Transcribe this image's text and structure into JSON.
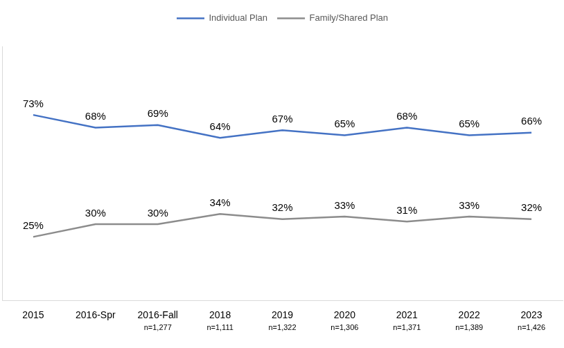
{
  "chart_data": {
    "type": "line",
    "categories": [
      "2015",
      "2016-Spr",
      "2016-Fall",
      "2018",
      "2019",
      "2020",
      "2021",
      "2022",
      "2023"
    ],
    "category_notes": [
      null,
      null,
      "n=1,277",
      "n=1,111",
      "n=1,322",
      "n=1,306",
      "n=1,371",
      "n=1,389",
      "n=1,426"
    ],
    "series": [
      {
        "name": "Individual Plan",
        "color": "#4472C4",
        "values": [
          73,
          68,
          69,
          64,
          67,
          65,
          68,
          65,
          66
        ],
        "value_labels": [
          "73%",
          "68%",
          "69%",
          "64%",
          "67%",
          "65%",
          "68%",
          "65%",
          "66%"
        ]
      },
      {
        "name": "Family/Shared Plan",
        "color": "#8C8C8C",
        "values": [
          25,
          30,
          30,
          34,
          32,
          33,
          31,
          33,
          32
        ],
        "value_labels": [
          "25%",
          "30%",
          "30%",
          "34%",
          "32%",
          "33%",
          "31%",
          "33%",
          "32%"
        ]
      }
    ],
    "ylim": [
      0,
      100
    ],
    "grid": false,
    "legend": "top",
    "data_labels": true,
    "tick_labels": "x",
    "marker": "none"
  }
}
